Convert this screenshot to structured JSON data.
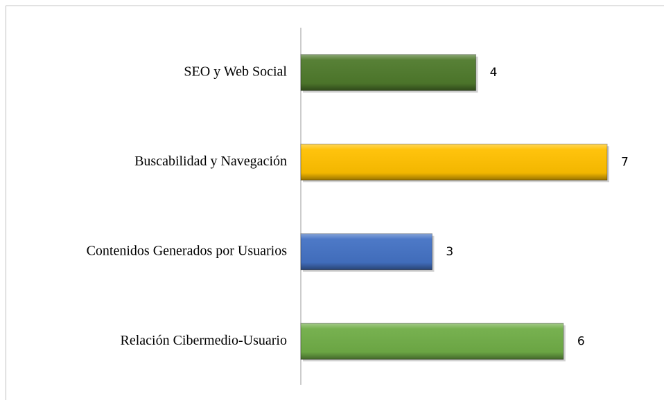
{
  "chart_data": {
    "type": "barh",
    "categories": [
      "SEO y Web Social",
      "Buscabilidad y Navegación",
      "Contenidos Generados por Usuarios",
      "Relación Cibermedio-Usuario"
    ],
    "values": [
      4,
      7,
      3,
      6
    ],
    "colors": [
      "#4f7a2c",
      "#ffc000",
      "#4472c4",
      "#70ad47"
    ],
    "xlim": [
      0,
      7
    ]
  }
}
